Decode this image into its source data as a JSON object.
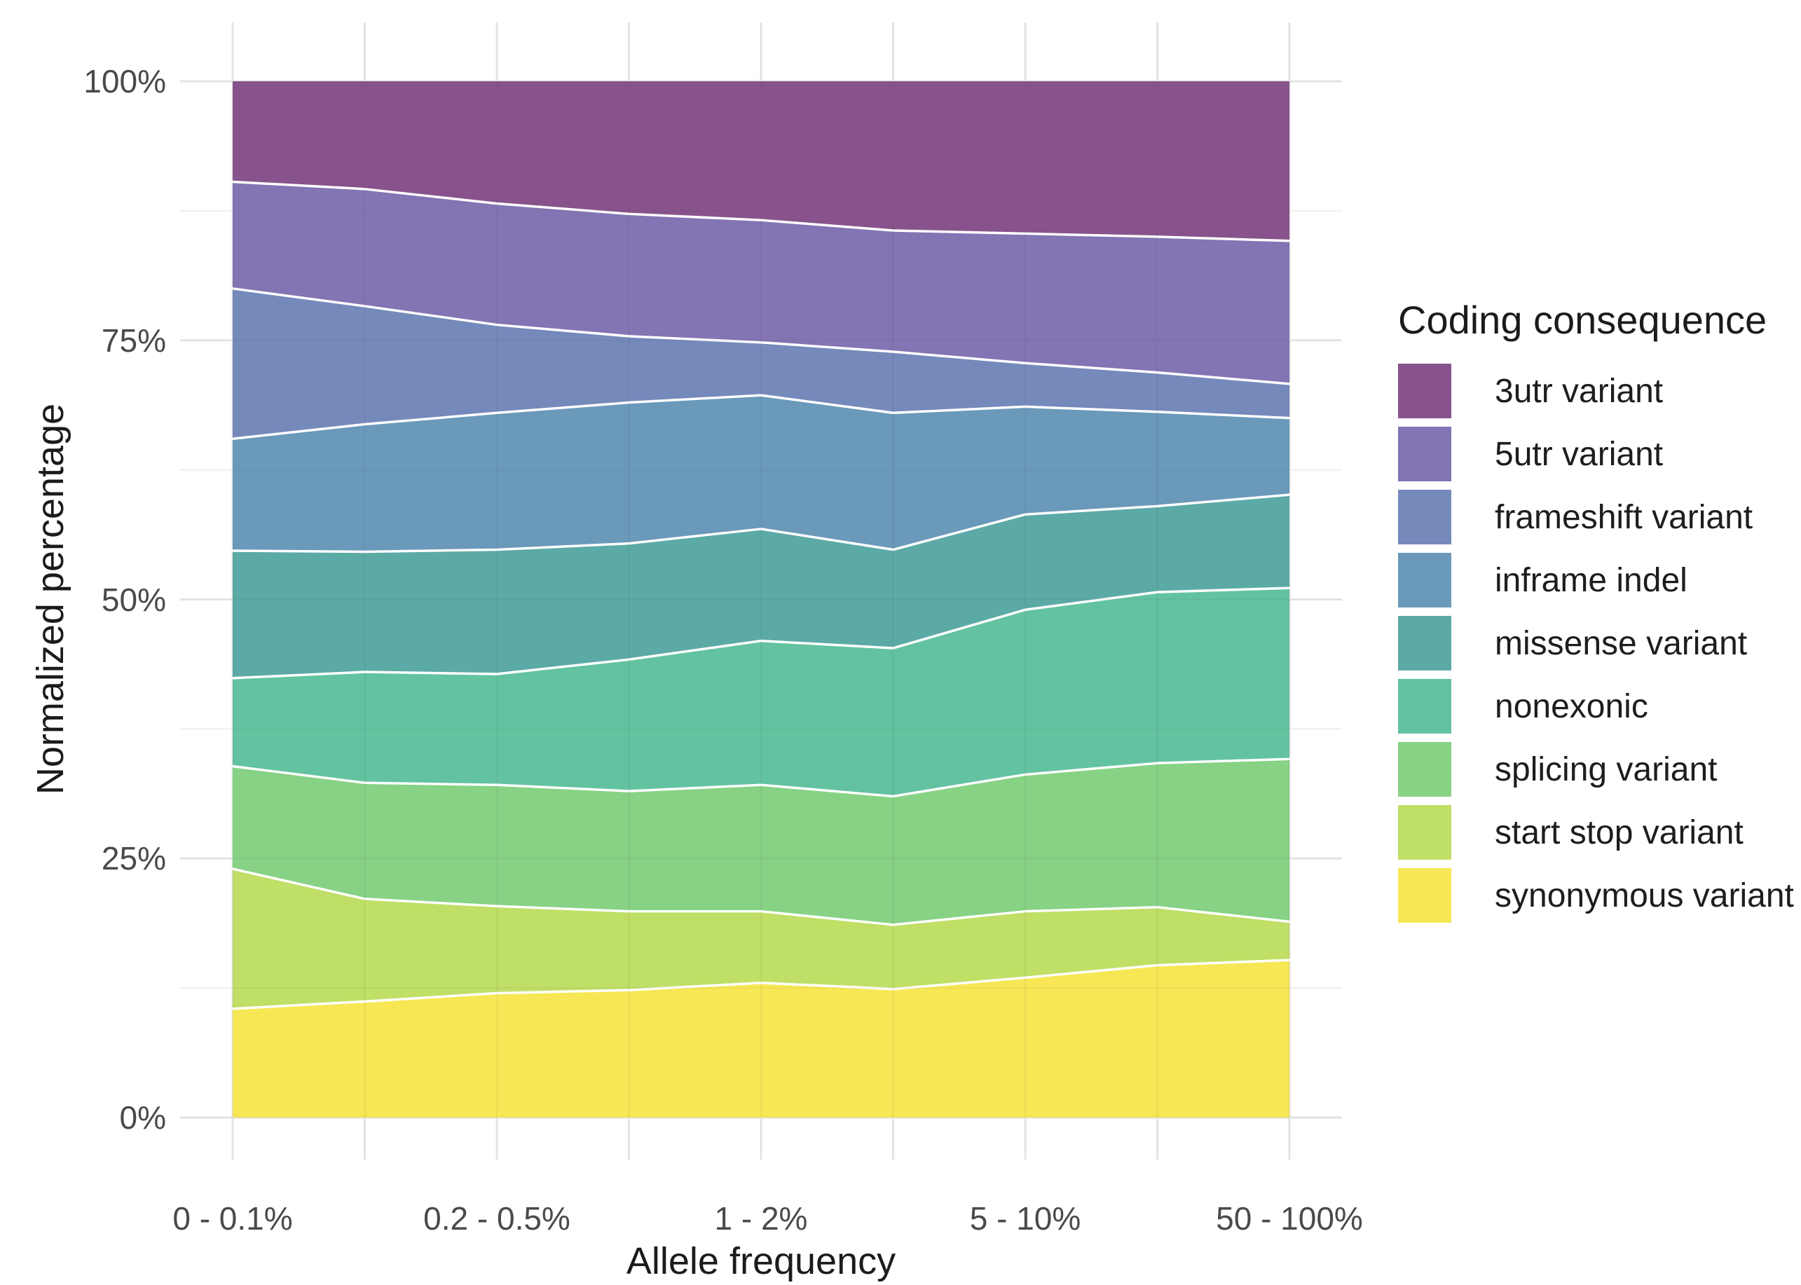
{
  "figure": {
    "background_color": "#ffffff",
    "grid_major_color": "#e3e3e3",
    "grid_minor_color": "#eeeeee",
    "band_separator_color": "#ffffff",
    "tick_label_color": "#4a4a4a",
    "axis_title_color": "#1b1b1b"
  },
  "chart_data": {
    "type": "area",
    "stacked": true,
    "normalized_to_100_percent": true,
    "title": "",
    "xlabel": "Allele frequency",
    "ylabel": "Normalized percentage",
    "legend_title": "Coding consequence",
    "legend_position": "right",
    "ylim": [
      0,
      100
    ],
    "y_tick_values": [
      0,
      25,
      50,
      75,
      100
    ],
    "y_tick_labels": [
      "0%",
      "25%",
      "50%",
      "75%",
      "100%"
    ],
    "x_positions": [
      1,
      2,
      3,
      4,
      5,
      6,
      7,
      8,
      9
    ],
    "x_tick_labels": [
      "0 - 0.1%",
      "",
      "0.2 - 0.5%",
      "",
      "1 - 2%",
      "",
      "5 - 10%",
      "",
      "50 - 100%"
    ],
    "grid": "horizontal major+minor, vertical major at every x position",
    "stack_order_bottom_to_top": [
      "synonymous variant",
      "start stop variant",
      "splicing variant",
      "nonexonic",
      "missense variant",
      "inframe indel",
      "frameshift variant",
      "5utr variant",
      "3utr variant"
    ],
    "series": [
      {
        "name": "3utr variant",
        "color": "#88538c",
        "values": [
          9.7,
          10.4,
          11.8,
          12.8,
          13.4,
          14.4,
          14.7,
          15.0,
          15.4
        ]
      },
      {
        "name": "5utr variant",
        "color": "#8374b3",
        "values": [
          10.3,
          11.3,
          11.7,
          11.8,
          11.8,
          11.7,
          12.5,
          13.1,
          13.8
        ]
      },
      {
        "name": "frameshift variant",
        "color": "#7689bb",
        "values": [
          14.5,
          11.4,
          8.5,
          6.4,
          5.1,
          5.9,
          4.2,
          3.8,
          3.3
        ]
      },
      {
        "name": "inframe indel",
        "color": "#6a99ba",
        "values": [
          10.8,
          12.3,
          13.2,
          13.6,
          12.9,
          13.2,
          10.4,
          9.1,
          7.4
        ]
      },
      {
        "name": "missense variant",
        "color": "#5caaa6",
        "values": [
          12.3,
          11.6,
          12.0,
          11.2,
          10.8,
          9.5,
          9.2,
          8.3,
          9.0
        ]
      },
      {
        "name": "nonexonic",
        "color": "#63c3a0",
        "values": [
          8.5,
          10.7,
          10.7,
          12.7,
          13.9,
          14.3,
          15.9,
          16.5,
          16.5
        ]
      },
      {
        "name": "splicing variant",
        "color": "#87d285",
        "values": [
          9.9,
          11.2,
          11.7,
          11.6,
          12.2,
          12.4,
          13.2,
          13.9,
          15.7
        ]
      },
      {
        "name": "start stop variant",
        "color": "#c0df66",
        "values": [
          13.5,
          9.9,
          8.4,
          7.6,
          6.9,
          6.2,
          6.4,
          5.6,
          3.7
        ]
      },
      {
        "name": "synonymous variant",
        "color": "#f8e755",
        "values": [
          10.5,
          11.2,
          12.0,
          12.3,
          13.0,
          12.4,
          13.5,
          14.7,
          15.2
        ]
      }
    ]
  }
}
